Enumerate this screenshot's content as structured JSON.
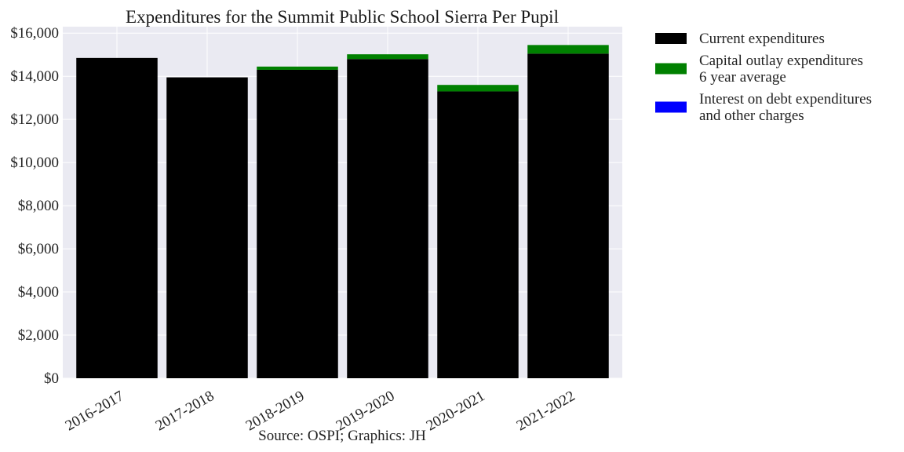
{
  "chart_data": {
    "type": "bar",
    "stacked": true,
    "title": "Expenditures for the Summit Public School Sierra Per Pupil",
    "xlabel": "",
    "ylabel": "",
    "caption": "Source: OSPI; Graphics: JH",
    "categories": [
      "2016-2017",
      "2017-2018",
      "2018-2019",
      "2019-2020",
      "2020-2021",
      "2021-2022"
    ],
    "ylim": [
      0,
      16300
    ],
    "yticks": [
      0,
      2000,
      4000,
      6000,
      8000,
      10000,
      12000,
      14000,
      16000
    ],
    "ytick_labels": [
      "$0",
      "$2,000",
      "$4,000",
      "$6,000",
      "$8,000",
      "$10,000",
      "$12,000",
      "$14,000",
      "$16,000"
    ],
    "grid": true,
    "legend_position": "outside-right",
    "series": [
      {
        "name": "Current expenditures",
        "legend_lines": [
          "Current expenditures"
        ],
        "color": "#000000",
        "values": [
          14850,
          13950,
          14300,
          14800,
          13300,
          15050
        ]
      },
      {
        "name": "Capital outlay expenditures 6 year average",
        "legend_lines": [
          "Capital outlay expenditures",
          "6 year average"
        ],
        "color": "#008000",
        "values": [
          0,
          0,
          150,
          220,
          300,
          400
        ]
      },
      {
        "name": "Interest on debt expenditures and other charges",
        "legend_lines": [
          "Interest on debt expenditures",
          "and other charges"
        ],
        "color": "#0000ff",
        "values": [
          0,
          0,
          0,
          0,
          0,
          0
        ]
      }
    ]
  }
}
